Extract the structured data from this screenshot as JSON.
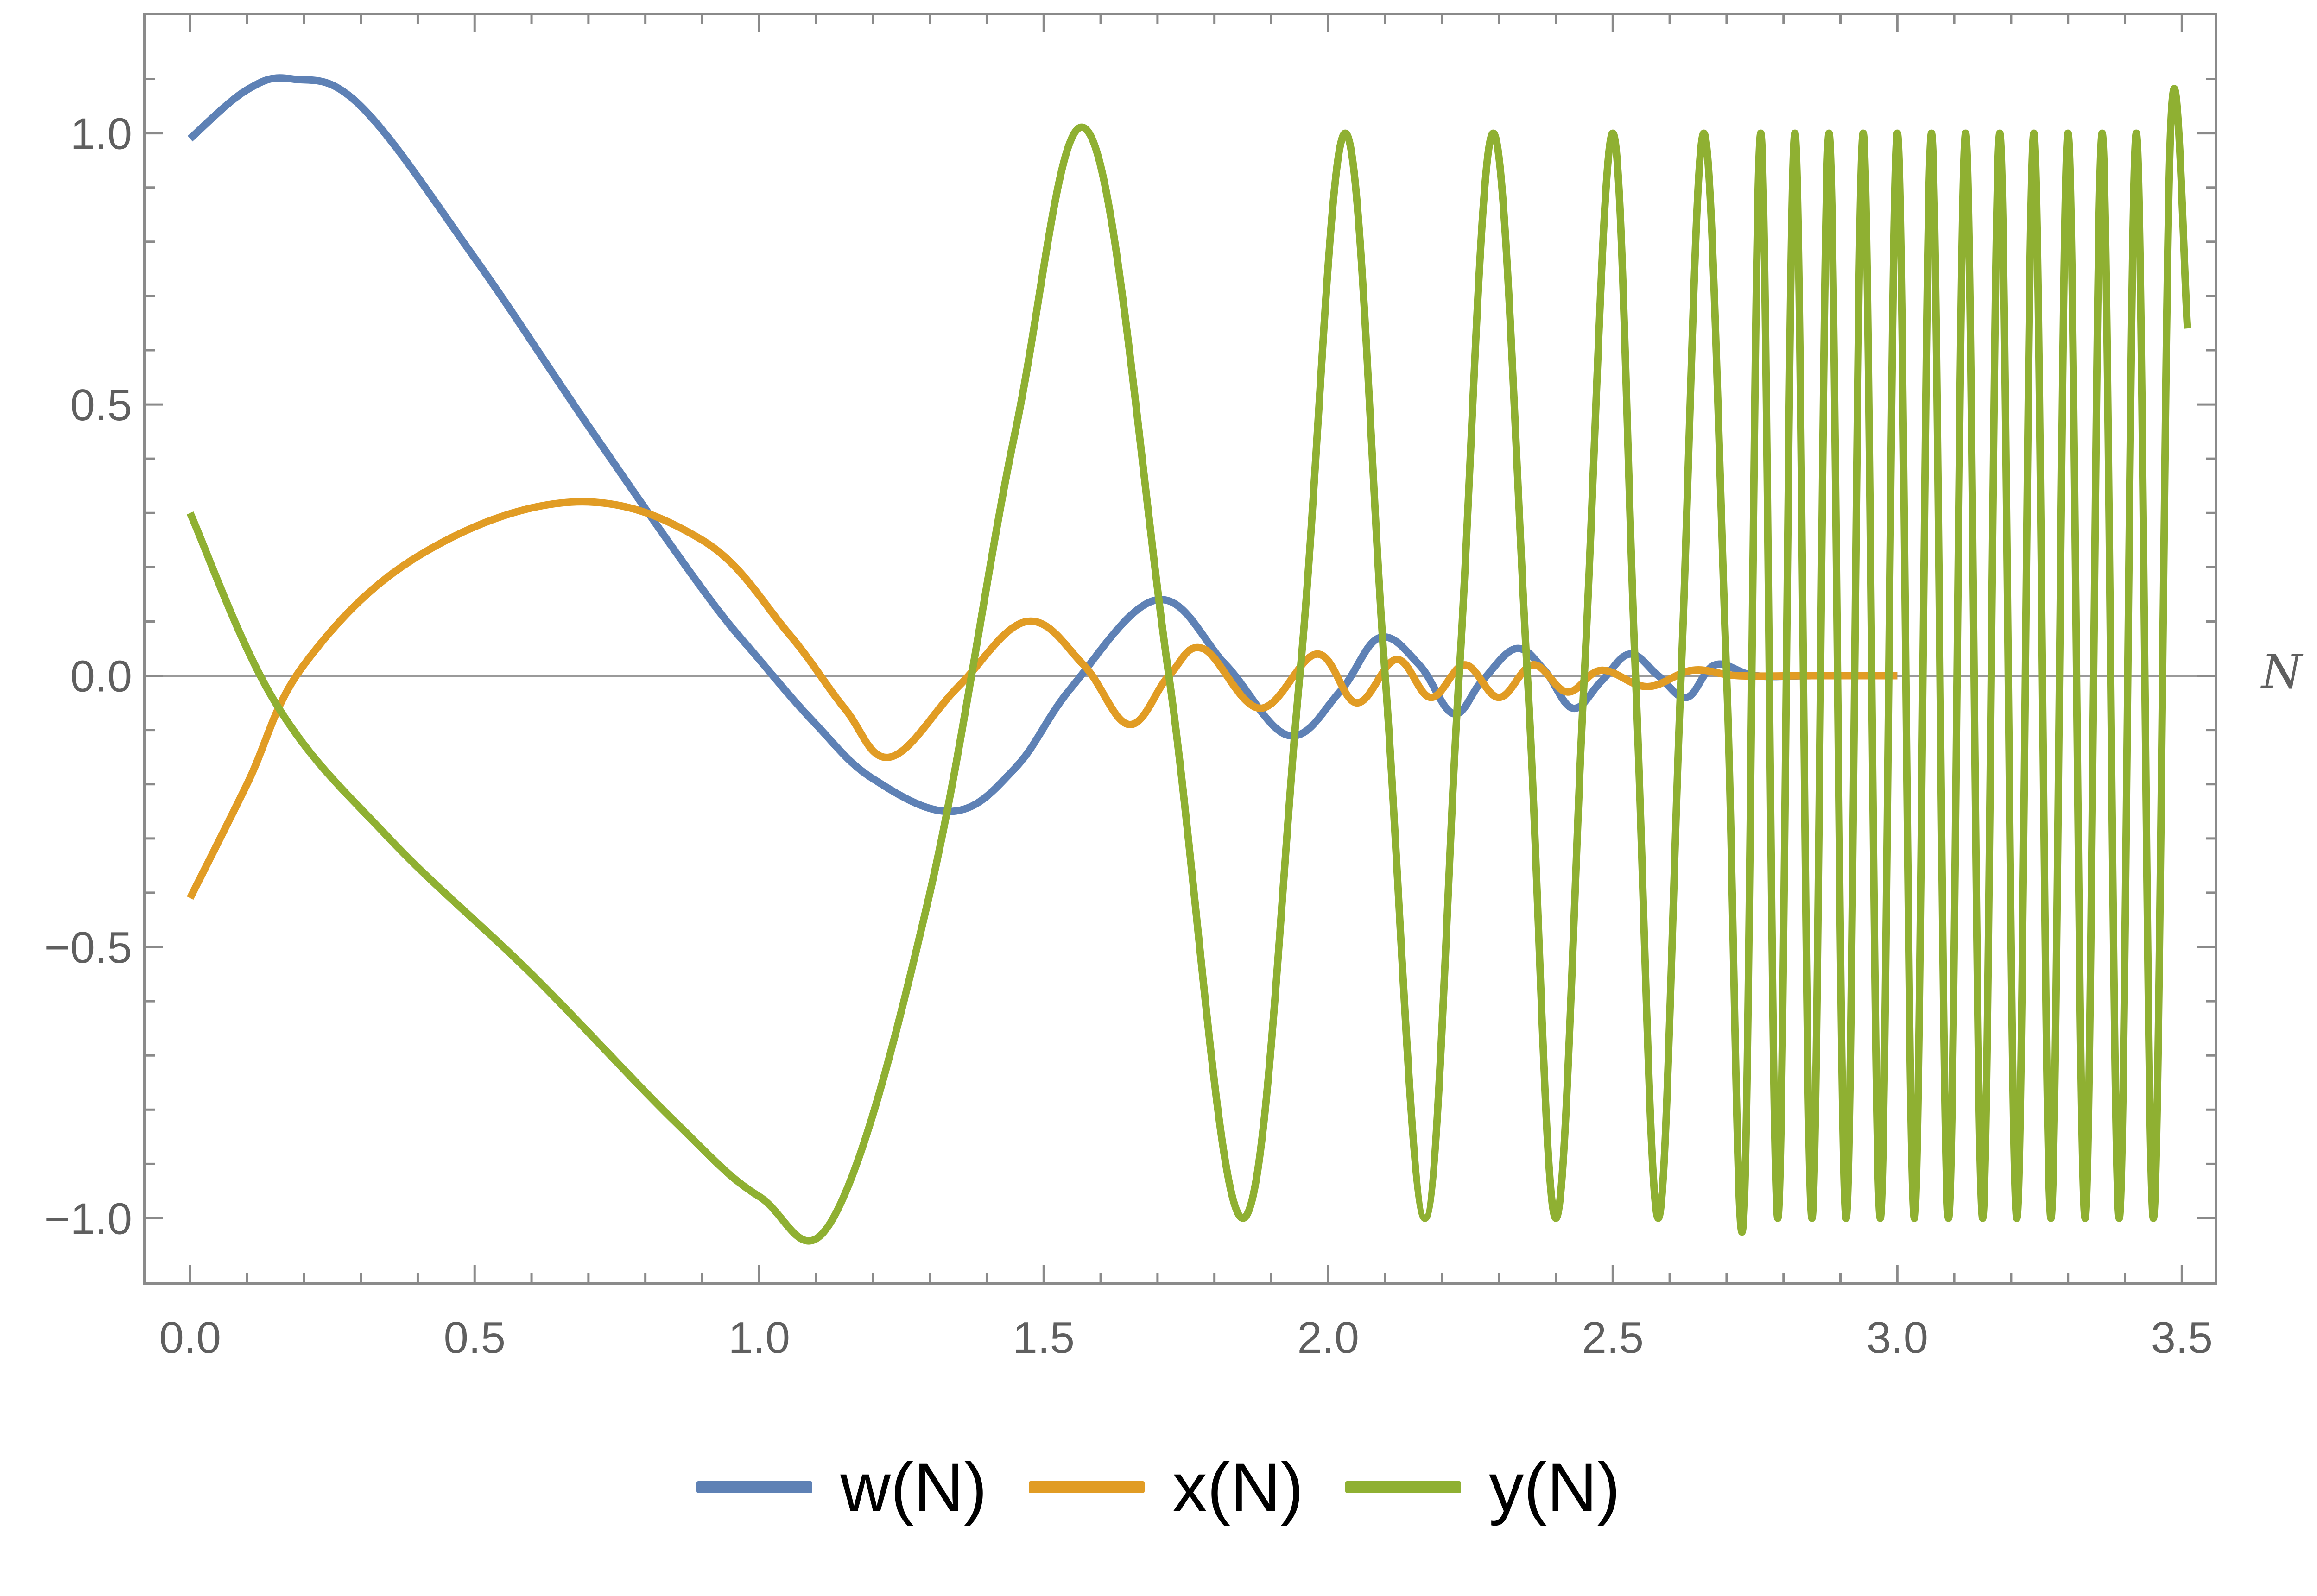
{
  "chart_data": {
    "type": "line",
    "xlabel": "N",
    "ylabel": "",
    "xlim": [
      -0.08,
      3.56
    ],
    "ylim": [
      -1.12,
      1.22
    ],
    "xticks": [
      0.0,
      0.5,
      1.0,
      1.5,
      2.0,
      2.5,
      3.0,
      3.5
    ],
    "xtick_labels": [
      "0.0",
      "0.5",
      "1.0",
      "1.5",
      "2.0",
      "2.5",
      "3.0",
      "3.5"
    ],
    "yticks": [
      -1.0,
      -0.5,
      0.0,
      0.5,
      1.0
    ],
    "ytick_labels": [
      "−1.0",
      "−0.5",
      "0.0",
      "0.5",
      "1.0"
    ],
    "grid": false,
    "legend_position": "bottom",
    "series": [
      {
        "name": "w(N)",
        "color": "#5e81b5",
        "x": [
          0.0,
          0.1,
          0.18,
          0.3,
          0.5,
          0.7,
          0.9,
          1.0,
          1.1,
          1.2,
          1.34,
          1.45,
          1.55,
          1.7,
          1.82,
          1.93,
          2.02,
          2.09,
          2.16,
          2.22,
          2.27,
          2.33,
          2.38,
          2.43,
          2.48,
          2.53,
          2.58,
          2.63,
          2.68,
          2.75,
          2.85,
          3.0
        ],
        "y": [
          0.99,
          1.08,
          1.1,
          1.05,
          0.77,
          0.46,
          0.16,
          0.03,
          -0.09,
          -0.19,
          -0.25,
          -0.17,
          -0.02,
          0.14,
          0.02,
          -0.11,
          -0.03,
          0.07,
          0.02,
          -0.07,
          -0.01,
          0.05,
          0.01,
          -0.06,
          -0.01,
          0.04,
          0.0,
          -0.04,
          0.02,
          0.0,
          0.0,
          0.0
        ]
      },
      {
        "name": "x(N)",
        "color": "#e19c24",
        "x": [
          0.0,
          0.1,
          0.2,
          0.4,
          0.67,
          0.9,
          1.05,
          1.15,
          1.23,
          1.35,
          1.47,
          1.57,
          1.65,
          1.72,
          1.78,
          1.88,
          1.98,
          2.05,
          2.12,
          2.18,
          2.24,
          2.3,
          2.36,
          2.42,
          2.48,
          2.56,
          2.64,
          2.72,
          2.85,
          3.0
        ],
        "y": [
          -0.41,
          -0.2,
          0.02,
          0.22,
          0.32,
          0.25,
          0.08,
          -0.06,
          -0.15,
          -0.02,
          0.1,
          0.02,
          -0.09,
          0.0,
          0.05,
          -0.06,
          0.04,
          -0.05,
          0.03,
          -0.04,
          0.02,
          -0.04,
          0.02,
          -0.03,
          0.01,
          -0.02,
          0.01,
          0.0,
          0.0,
          0.0
        ]
      },
      {
        "name": "y(N)",
        "color": "#8fb032",
        "x": [
          0.0,
          0.15,
          0.35,
          0.6,
          0.85,
          1.0,
          1.13,
          1.3,
          1.45,
          1.58,
          1.72,
          1.85,
          1.95,
          2.03,
          2.1,
          2.17,
          2.23,
          2.29,
          2.35,
          2.4,
          2.45,
          2.5,
          2.54,
          2.58,
          2.62,
          2.66,
          2.7,
          2.73,
          2.76,
          2.79,
          2.82,
          2.85,
          2.88,
          2.91,
          2.94,
          2.97,
          3.0,
          3.03,
          3.06,
          3.09,
          3.12,
          3.15,
          3.18,
          3.21,
          3.24,
          3.27,
          3.3,
          3.33,
          3.36,
          3.39,
          3.42,
          3.45,
          3.48,
          3.51
        ],
        "y": [
          0.3,
          -0.05,
          -0.3,
          -0.55,
          -0.82,
          -0.96,
          -1.0,
          -0.4,
          0.45,
          1.0,
          0.0,
          -1.0,
          0.0,
          1.0,
          0.0,
          -1.0,
          0.0,
          1.0,
          0.0,
          -1.0,
          0.0,
          1.0,
          0.0,
          -1.0,
          0.0,
          1.0,
          0.0,
          -1.0,
          1.0,
          -1.0,
          1.0,
          -1.0,
          1.0,
          -1.0,
          1.0,
          -1.0,
          1.0,
          -1.0,
          1.0,
          -1.0,
          1.0,
          -1.0,
          1.0,
          -1.0,
          1.0,
          -1.0,
          1.0,
          -1.0,
          1.0,
          -1.0,
          1.0,
          -1.0,
          1.0,
          0.64
        ]
      }
    ]
  }
}
